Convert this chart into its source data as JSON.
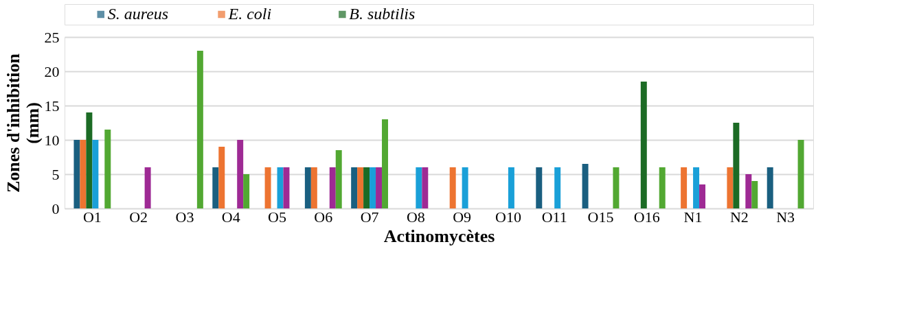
{
  "chart_data": {
    "type": "bar",
    "xlabel": "Actinomycètes",
    "ylabel": "Zones d'inhibition (mm)",
    "categories": [
      "O1",
      "O2",
      "O3",
      "O4",
      "O5",
      "O6",
      "O7",
      "O8",
      "O9",
      "O10",
      "O11",
      "O15",
      "O16",
      "N1",
      "N2",
      "N3"
    ],
    "series": [
      {
        "name": "S. aureus",
        "color": "#1a5f80",
        "values": [
          10,
          0,
          0,
          6,
          0,
          6,
          6,
          0,
          0,
          0,
          6,
          6.5,
          0,
          0,
          0,
          6
        ]
      },
      {
        "name": "E. coli",
        "color": "#ed7431",
        "values": [
          10,
          0,
          0,
          9,
          6,
          6,
          6,
          0,
          6,
          0,
          0,
          0,
          0,
          6,
          6,
          0
        ]
      },
      {
        "name": "B. subtilis",
        "color": "#1c6b25",
        "values": [
          14,
          0,
          0,
          0,
          0,
          0,
          6,
          0,
          0,
          0,
          0,
          0,
          18.5,
          0,
          12.5,
          0
        ]
      },
      {
        "color": "#1aa0d8",
        "values": [
          10,
          0,
          0,
          0,
          6,
          0,
          6,
          6,
          6,
          6,
          6,
          0,
          0,
          6,
          0,
          0
        ]
      },
      {
        "color": "#9e2a94",
        "values": [
          0,
          6,
          0,
          10,
          6,
          6,
          6,
          6,
          0,
          0,
          0,
          0,
          0,
          3.5,
          5,
          0
        ]
      },
      {
        "color": "#52a832",
        "values": [
          11.5,
          0,
          23,
          5,
          0,
          8.5,
          13,
          0,
          0,
          0,
          0,
          6,
          6,
          0,
          4,
          10
        ]
      }
    ],
    "ylim": [
      0,
      25
    ],
    "yticks": [
      0,
      5,
      10,
      15,
      20,
      25
    ],
    "grid": "y",
    "legend": "top"
  }
}
